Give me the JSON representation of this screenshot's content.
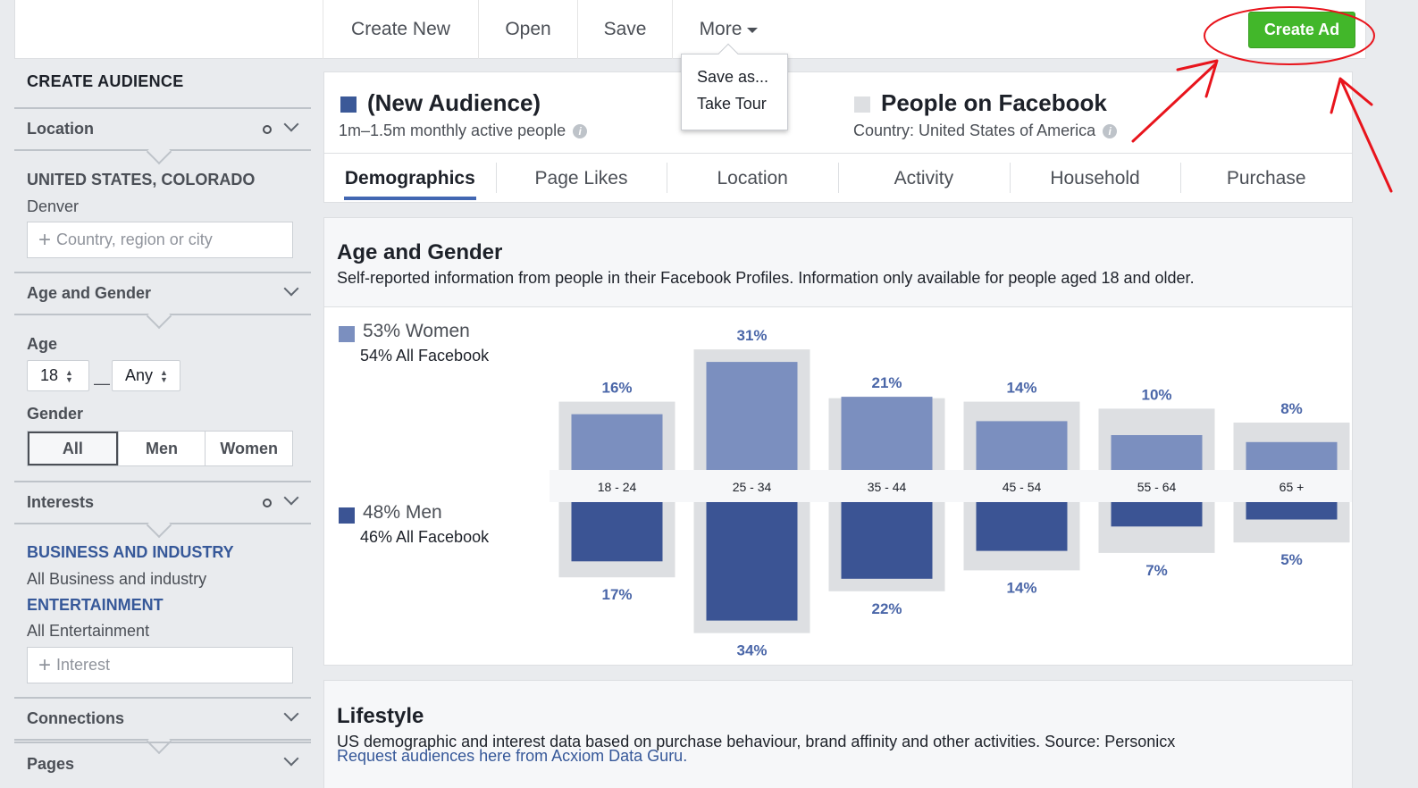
{
  "toolbar": {
    "create_new": "Create New",
    "open": "Open",
    "save": "Save",
    "more": "More",
    "create_ad": "Create Ad"
  },
  "more_menu": {
    "items": [
      "Save as...",
      "Take Tour"
    ]
  },
  "sidebar": {
    "title": "CREATE AUDIENCE",
    "location": {
      "label": "Location",
      "selected_region": "UNITED STATES, COLORADO",
      "selected_city": "Denver",
      "placeholder": "Country, region or city"
    },
    "age_gender": {
      "label": "Age and Gender",
      "age_label": "Age",
      "age_min": "18",
      "age_max": "Any",
      "age_separator": "—",
      "gender_label": "Gender",
      "gender_options": [
        "All",
        "Men",
        "Women"
      ],
      "gender_selected": "All"
    },
    "interests": {
      "label": "Interests",
      "groups": [
        {
          "category": "BUSINESS AND INDUSTRY",
          "value": "All Business and industry"
        },
        {
          "category": "ENTERTAINMENT",
          "value": "All Entertainment"
        }
      ],
      "placeholder": "Interest"
    },
    "connections": {
      "label": "Connections"
    },
    "pages": {
      "label": "Pages"
    }
  },
  "audience": {
    "title": "(New Audience)",
    "subtitle": "1m–1.5m monthly active people",
    "color": "#3b5998",
    "compare_title": "People on Facebook",
    "compare_subtitle": "Country: United States of America",
    "compare_color": "#dddfe2"
  },
  "tabs": [
    "Demographics",
    "Page Likes",
    "Location",
    "Activity",
    "Household",
    "Purchase"
  ],
  "active_tab": "Demographics",
  "age_gender_card": {
    "title": "Age and Gender",
    "subtitle": "Self-reported information from people in their Facebook Profiles. Information only available for people aged 18 and older.",
    "women": {
      "label": "53% Women",
      "all_facebook": "54% All Facebook",
      "color": "#7b8fbf"
    },
    "men": {
      "label": "48% Men",
      "all_facebook": "46% All Facebook",
      "color": "#3b5494"
    }
  },
  "chart_data": {
    "type": "bar",
    "categories": [
      "18 - 24",
      "25 - 34",
      "35 - 44",
      "45 - 54",
      "55 - 64",
      "65 +"
    ],
    "series": [
      {
        "name": "Women",
        "values": [
          16,
          31,
          21,
          14,
          10,
          8
        ],
        "labels": [
          "16%",
          "31%",
          "21%",
          "14%",
          "10%",
          "8%"
        ]
      },
      {
        "name": "Men",
        "values": [
          17,
          34,
          22,
          14,
          7,
          5
        ],
        "labels": [
          "17%",
          "34%",
          "22%",
          "14%",
          "7%",
          "5%"
        ]
      }
    ],
    "benchmark": {
      "women_values": [
        16,
        31,
        17,
        16,
        14,
        10
      ],
      "men_values": [
        18,
        34,
        22,
        16,
        11,
        8
      ]
    },
    "colors": {
      "women": "#7b8fbf",
      "men": "#3b5494",
      "benchmark": "#dddfe2",
      "label": "#4a66a8"
    }
  },
  "lifestyle_card": {
    "title": "Lifestyle",
    "subtitle": "US demographic and interest data based on purchase behaviour, brand affinity and other activities. Source: Personicx",
    "link": "Request audiences here from Acxiom Data Guru."
  },
  "annotation_color": "#e8141c"
}
